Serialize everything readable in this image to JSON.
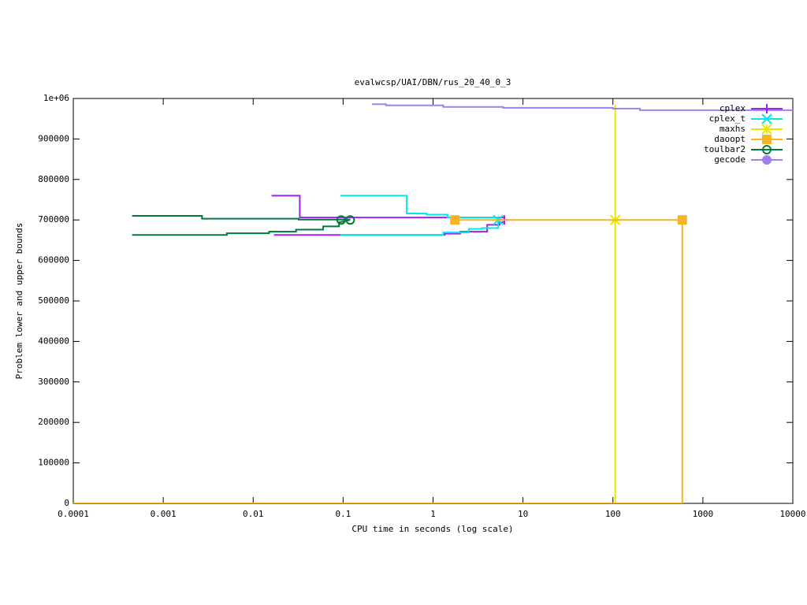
{
  "chart_data": {
    "type": "line",
    "title": "evalwcsp/UAI/DBN/rus_20_40_0_3",
    "x_label": "CPU time in seconds (log scale)",
    "y_label": "Problem lower and upper bounds",
    "x_log": true,
    "legend": "top-right",
    "xlim": [
      0.0001,
      10000
    ],
    "xticks": [
      0.0001,
      0.001,
      0.01,
      0.1,
      1,
      10,
      100,
      1000,
      10000
    ],
    "ylim": [
      0,
      1000000
    ],
    "yticks": [
      0,
      100000,
      200000,
      300000,
      400000,
      500000,
      600000,
      700000,
      800000,
      900000,
      {
        "value": 1000000,
        "label": "1e+06"
      }
    ],
    "series": [
      {
        "name": "cplex",
        "color": "#a020f0",
        "marker": "plus",
        "x": [
          0.016,
          0.033,
          0.033,
          6.2,
          6.2,
          null,
          0.017,
          1.35,
          1.35,
          2.0,
          2.0,
          4.0,
          4.0,
          5.5,
          5.5,
          6.2,
          6.2
        ],
        "values": [
          760000,
          760000,
          706000,
          706000,
          700000,
          null,
          663000,
          663000,
          666000,
          666000,
          671000,
          671000,
          688000,
          688000,
          694000,
          694000,
          700000
        ],
        "points_x": [
          6.2
        ],
        "points_values": [
          700000
        ]
      },
      {
        "name": "cplex_t",
        "color": "#00e8e8",
        "marker": "cross",
        "x": [
          0.093,
          0.51,
          0.51,
          0.85,
          0.85,
          1.45,
          1.45,
          5.3,
          5.3,
          null,
          0.093,
          1.3,
          1.3,
          2.5,
          2.5,
          3.5,
          3.5,
          5.3,
          5.3
        ],
        "values": [
          760000,
          760000,
          716000,
          716000,
          713000,
          713000,
          706000,
          706000,
          700000,
          null,
          663000,
          663000,
          669000,
          669000,
          678000,
          678000,
          680000,
          680000,
          700000
        ],
        "points_x": [
          5.3
        ],
        "points_values": [
          700000
        ]
      },
      {
        "name": "maxhs",
        "color": "#e8e800",
        "marker": "star",
        "x": [
          0.0001,
          106,
          106,
          null,
          106,
          106
        ],
        "values": [
          0,
          0,
          700000,
          null,
          985000,
          700000
        ],
        "points_x": [
          106
        ],
        "points_values": [
          700000
        ]
      },
      {
        "name": "daoopt",
        "color": "#f5b325",
        "marker": "square",
        "x": [
          1.75,
          590,
          null,
          0.0001,
          590,
          590
        ],
        "values": [
          700000,
          700000,
          null,
          0,
          0,
          700000
        ],
        "points_x": [
          1.75,
          590
        ],
        "points_values": [
          700000,
          700000
        ]
      },
      {
        "name": "toulbar2",
        "color": "#007a3d",
        "marker": "circle-open",
        "x": [
          0.00045,
          0.0027,
          0.0027,
          0.032,
          0.032,
          0.12,
          null,
          0.00045,
          0.0051,
          0.0051,
          0.015,
          0.015,
          0.03,
          0.03,
          0.06,
          0.06,
          0.09,
          0.09,
          0.12
        ],
        "values": [
          710000,
          710000,
          703000,
          703000,
          701000,
          701000,
          null,
          663000,
          663000,
          667000,
          667000,
          671000,
          671000,
          676000,
          676000,
          684000,
          684000,
          694000,
          700000
        ],
        "points_x": [
          0.095,
          0.12
        ],
        "points_values": [
          700000,
          700000
        ]
      },
      {
        "name": "gecode",
        "color": "#a080f0",
        "marker": "circle",
        "x": [
          0.21,
          0.3,
          0.3,
          1.3,
          1.3,
          6,
          6,
          100,
          100,
          200,
          200,
          10000
        ],
        "values": [
          986000,
          986000,
          983000,
          983000,
          979000,
          979000,
          977000,
          977000,
          975000,
          975000,
          971000,
          971000
        ],
        "points_x": [],
        "points_values": []
      }
    ]
  }
}
